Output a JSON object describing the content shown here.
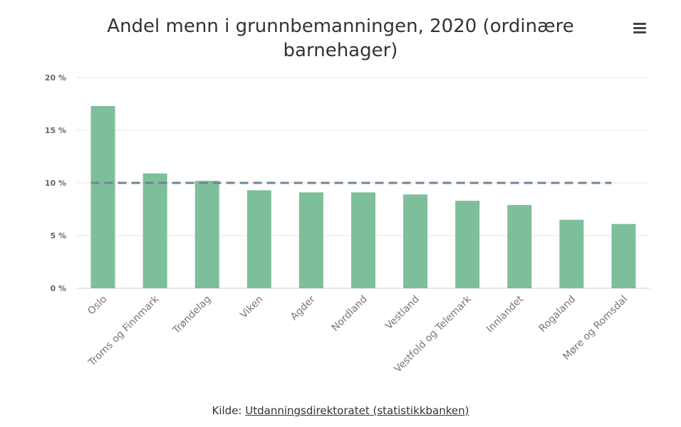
{
  "chart_data": {
    "type": "bar",
    "title": "Andel menn i grunnbemanningen, 2020 (ordinære barnehager)",
    "categories": [
      "Oslo",
      "Troms og Finnmark",
      "Trøndelag",
      "Viken",
      "Agder",
      "Nordland",
      "Vestland",
      "Vestfold og Telemark",
      "Innlandet",
      "Rogaland",
      "Møre og Romsdal"
    ],
    "values": [
      17.3,
      10.9,
      10.2,
      9.3,
      9.1,
      9.1,
      8.9,
      8.3,
      7.9,
      6.5,
      6.1
    ],
    "reference_line": 10,
    "ylim": [
      0,
      20
    ],
    "yticks": [
      0,
      5,
      10,
      15,
      20
    ],
    "ytick_labels": [
      "0 %",
      "5 %",
      "10 %",
      "15 %",
      "20 %"
    ],
    "xlabel": "",
    "ylabel": "",
    "grid": true,
    "bar_color": "#7dbf9a",
    "reference_line_color": "#6f8496",
    "gridline_color": "#e6e6e6"
  },
  "menu": {
    "icon": "hamburger-menu-icon"
  },
  "source": {
    "prefix": "Kilde: ",
    "link_text": "Utdanningsdirektoratet (statistikkbanken)"
  }
}
